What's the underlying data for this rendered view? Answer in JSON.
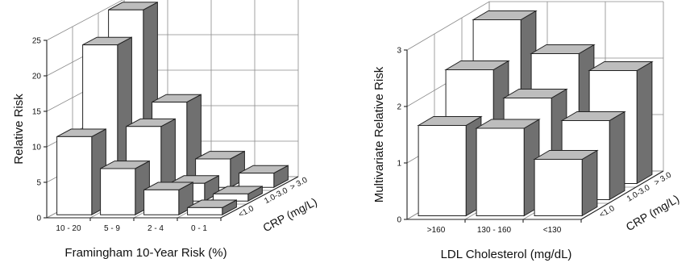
{
  "chart_data": [
    {
      "type": "bar3d",
      "xlabel": "Framingham 10-Year Risk (%)",
      "ylabel": "Relative Risk",
      "zlabel": "CRP (mg/L)",
      "categories": [
        "10 - 20",
        "5 - 9",
        "2 - 4",
        "0 - 1"
      ],
      "depth_categories": [
        "<1.0",
        "1.0-3.0",
        "> 3.0"
      ],
      "yticks": [
        "0",
        "5",
        "10",
        "15",
        "20",
        "25"
      ],
      "ylim": [
        0,
        25
      ],
      "series": [
        {
          "name": "<1.0",
          "values": [
            11,
            6.5,
            3.5,
            1
          ]
        },
        {
          "name": "1.0-3.0",
          "values": [
            22,
            10.5,
            2.5,
            1
          ]
        },
        {
          "name": "> 3.0",
          "values": [
            25,
            12,
            4,
            2
          ]
        }
      ]
    },
    {
      "type": "bar3d",
      "xlabel": "LDL Cholesterol (mg/dL)",
      "ylabel": "Multivariate Relative Risk",
      "zlabel": "CRP (mg/L)",
      "categories": [
        ">160",
        "130 - 160",
        "<130"
      ],
      "depth_categories": [
        "<1.0",
        "1.0-3.0",
        "> 3.0"
      ],
      "yticks": [
        "0",
        "1",
        "2",
        "3"
      ],
      "ylim": [
        0,
        3
      ],
      "series": [
        {
          "name": "<1.0",
          "values": [
            1.6,
            1.55,
            1.0
          ]
        },
        {
          "name": "1.0-3.0",
          "values": [
            2.3,
            1.8,
            1.4
          ]
        },
        {
          "name": "> 3.0",
          "values": [
            2.9,
            2.3,
            2.0
          ]
        }
      ]
    }
  ]
}
